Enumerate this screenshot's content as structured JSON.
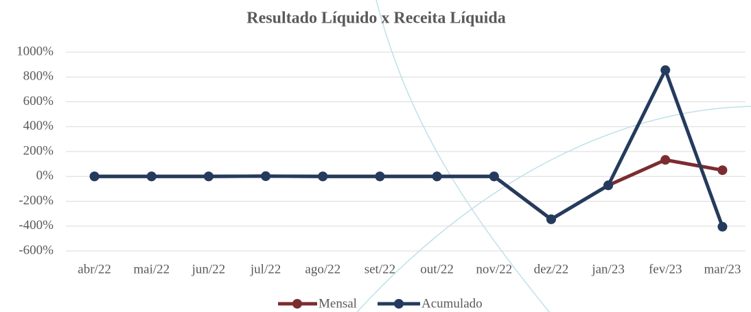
{
  "chart_data": {
    "type": "line",
    "title": "Resultado Líquido x Receita Líquida",
    "categories": [
      "abr/22",
      "mai/22",
      "jun/22",
      "jul/22",
      "ago/22",
      "set/22",
      "out/22",
      "nov/22",
      "dez/22",
      "jan/23",
      "fev/23",
      "mar/23"
    ],
    "series": [
      {
        "name": "Mensal",
        "color": "#7b2c2f",
        "values": [
          0,
          0,
          0,
          2,
          0,
          0,
          0,
          0,
          -345,
          -72,
          133,
          50
        ]
      },
      {
        "name": "Acumulado",
        "color": "#243b5e",
        "values": [
          0,
          0,
          0,
          2,
          0,
          0,
          0,
          0,
          -345,
          -72,
          855,
          -405
        ]
      }
    ],
    "ylim": [
      -600,
      1000
    ],
    "yticks": [
      {
        "value": 1000,
        "label": "1000%"
      },
      {
        "value": 800,
        "label": "800%"
      },
      {
        "value": 600,
        "label": "600%"
      },
      {
        "value": 400,
        "label": "400%"
      },
      {
        "value": 200,
        "label": "200%"
      },
      {
        "value": 0,
        "label": "0%"
      },
      {
        "value": -200,
        "label": "-200%"
      },
      {
        "value": -400,
        "label": "-400%"
      },
      {
        "value": -600,
        "label": "-600%"
      }
    ],
    "grid": true,
    "legend": "bottom"
  }
}
